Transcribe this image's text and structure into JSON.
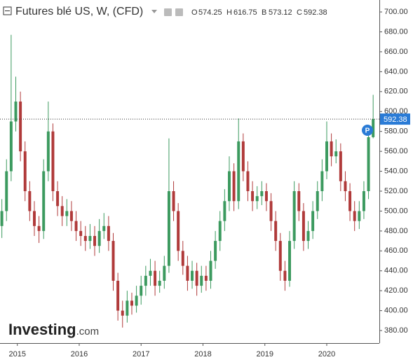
{
  "chart_data": {
    "type": "candlestick",
    "title": "Futures blé US, W, (CFD)",
    "ohlc": [
      {
        "label": "O",
        "value": 574.25
      },
      {
        "label": "H",
        "value": 616.75
      },
      {
        "label": "B",
        "value": 573.12
      },
      {
        "label": "C",
        "value": 592.38
      }
    ],
    "badge": "P",
    "watermark": [
      "Investing",
      ".com"
    ],
    "up_color": "#3c9a5f",
    "down_color": "#b03a3a",
    "last_price_color": "#2a7bd6",
    "x": [
      2014.75,
      2014.825,
      2014.9,
      2014.975,
      2015.05,
      2015.125,
      2015.2,
      2015.275,
      2015.35,
      2015.425,
      2015.5,
      2015.575,
      2015.65,
      2015.725,
      2015.8,
      2015.875,
      2015.95,
      2016.025,
      2016.1,
      2016.175,
      2016.25,
      2016.325,
      2016.4,
      2016.475,
      2016.55,
      2016.625,
      2016.7,
      2016.775,
      2016.85,
      2016.925,
      2017.0,
      2017.075,
      2017.15,
      2017.225,
      2017.3,
      2017.375,
      2017.45,
      2017.525,
      2017.6,
      2017.675,
      2017.75,
      2017.825,
      2017.9,
      2017.975,
      2018.05,
      2018.125,
      2018.2,
      2018.275,
      2018.35,
      2018.425,
      2018.5,
      2018.575,
      2018.65,
      2018.725,
      2018.8,
      2018.875,
      2018.95,
      2019.025,
      2019.1,
      2019.175,
      2019.25,
      2019.325,
      2019.4,
      2019.475,
      2019.55,
      2019.625,
      2019.7,
      2019.775,
      2019.85,
      2019.925,
      2020.0,
      2020.075,
      2020.15,
      2020.225,
      2020.3,
      2020.375,
      2020.45,
      2020.525,
      2020.6,
      2020.675,
      2020.75
    ],
    "open": [
      485,
      500,
      540,
      590,
      610,
      560,
      520,
      500,
      485,
      480,
      540,
      580,
      520,
      505,
      495,
      500,
      490,
      480,
      475,
      470,
      475,
      465,
      480,
      485,
      470,
      430,
      400,
      395,
      410,
      405,
      415,
      425,
      435,
      440,
      425,
      430,
      445,
      520,
      500,
      460,
      445,
      430,
      440,
      425,
      435,
      430,
      450,
      470,
      490,
      510,
      540,
      510,
      570,
      540,
      520,
      510,
      515,
      520,
      510,
      490,
      470,
      440,
      430,
      470,
      520,
      500,
      470,
      480,
      500,
      520,
      540,
      570,
      555,
      560,
      530,
      520,
      500,
      490,
      500,
      520,
      574.25
    ],
    "high": [
      512,
      552,
      677,
      635,
      620,
      570,
      530,
      510,
      495,
      552,
      610,
      588,
      530,
      515,
      512,
      510,
      500,
      490,
      485,
      487,
      485,
      492,
      498,
      495,
      478,
      438,
      410,
      420,
      418,
      425,
      435,
      445,
      452,
      450,
      440,
      455,
      573,
      530,
      508,
      470,
      455,
      450,
      448,
      445,
      445,
      460,
      480,
      500,
      522,
      555,
      548,
      593,
      578,
      550,
      530,
      525,
      530,
      528,
      518,
      500,
      478,
      450,
      480,
      530,
      528,
      508,
      490,
      510,
      530,
      552,
      590,
      578,
      572,
      568,
      540,
      528,
      510,
      510,
      530,
      580,
      616.75
    ],
    "low": [
      473,
      490,
      530,
      580,
      550,
      510,
      490,
      475,
      468,
      472,
      530,
      510,
      495,
      485,
      485,
      480,
      470,
      465,
      460,
      462,
      455,
      458,
      472,
      460,
      420,
      390,
      383,
      388,
      396,
      398,
      406,
      415,
      425,
      415,
      418,
      422,
      438,
      490,
      450,
      436,
      420,
      422,
      415,
      418,
      420,
      422,
      442,
      460,
      480,
      500,
      500,
      502,
      530,
      510,
      500,
      502,
      506,
      500,
      480,
      460,
      430,
      420,
      424,
      462,
      490,
      460,
      462,
      472,
      492,
      510,
      532,
      545,
      548,
      520,
      510,
      490,
      480,
      482,
      492,
      512,
      573.12
    ],
    "close": [
      500,
      540,
      590,
      610,
      560,
      520,
      500,
      485,
      480,
      540,
      580,
      520,
      505,
      495,
      500,
      490,
      480,
      475,
      470,
      475,
      465,
      480,
      485,
      470,
      430,
      400,
      395,
      410,
      405,
      415,
      425,
      435,
      440,
      425,
      430,
      445,
      520,
      500,
      460,
      445,
      430,
      440,
      425,
      435,
      430,
      450,
      470,
      490,
      510,
      540,
      510,
      570,
      540,
      520,
      510,
      515,
      520,
      510,
      490,
      470,
      440,
      430,
      470,
      520,
      500,
      470,
      480,
      500,
      520,
      540,
      570,
      555,
      560,
      530,
      520,
      500,
      490,
      500,
      520,
      574.25,
      592.38
    ],
    "xlim": [
      2014.72,
      2020.85
    ],
    "xticks": [
      2015,
      2016,
      2017,
      2018,
      2019,
      2020
    ],
    "ylim": [
      367.4,
      712
    ],
    "yticks": [
      {
        "value": 380,
        "label": "380.00"
      },
      {
        "value": 400,
        "label": "400.00"
      },
      {
        "value": 420,
        "label": "420.00"
      },
      {
        "value": 440,
        "label": "440.00"
      },
      {
        "value": 460,
        "label": "460.00"
      },
      {
        "value": 480,
        "label": "480.00"
      },
      {
        "value": 500,
        "label": "500.00"
      },
      {
        "value": 520,
        "label": "520.00"
      },
      {
        "value": 540,
        "label": "540.00"
      },
      {
        "value": 560,
        "label": "560.00"
      },
      {
        "value": 580,
        "label": "580.00"
      },
      {
        "value": 600,
        "label": "600.00"
      },
      {
        "value": 620,
        "label": "620.00"
      },
      {
        "value": 640,
        "label": "640.00"
      },
      {
        "value": 660,
        "label": "660.00"
      },
      {
        "value": 680,
        "label": "680.00"
      },
      {
        "value": 700,
        "label": "700.00"
      }
    ],
    "grid": false
  }
}
